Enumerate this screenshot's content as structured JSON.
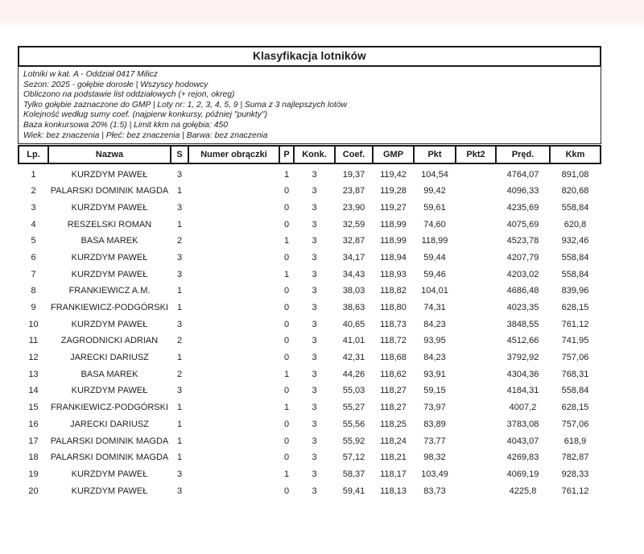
{
  "colors": {
    "top_band_tint": "#fdf2f0",
    "border_color": "#1b1b1b",
    "background": "#ffffff"
  },
  "title": "Klasyfikacja lotników",
  "info_lines": [
    "Lotniki w kat. A - Oddział 0417 Milicz",
    "Sezon: 2025 - gołębie dorosłe  |  Wszyscy hodowcy",
    "Obliczono na podstawie list oddziałowych (+ rejon, okreg)",
    "Tylko gołębie zaznaczone do GMP  |  Loty nr: 1, 2, 3, 4, 5, 9  |  Suma z 3 najlepszych lotów",
    "Kolejność według sumy coef. (najpierw konkursy, później \"punkty\")",
    "Baza konkursowa 20% (1:5) | Limit kkm na gołębia: 450",
    "Wiek: bez znaczenia  |  Płeć: bez znaczenia  |  Barwa: bez znaczenia"
  ],
  "table": {
    "columns": [
      "Lp.",
      "Nazwa",
      "S",
      "Numer obrączki",
      "P",
      "Konk.",
      "Coef.",
      "GMP",
      "Pkt",
      "Pkt2",
      "Pręd.",
      "Kkm"
    ],
    "rows": [
      [
        "1",
        "KURZDYM PAWEŁ",
        "3",
        "",
        "1",
        "3",
        "19,37",
        "119,42",
        "104,54",
        "",
        "4764,07",
        "891,08"
      ],
      [
        "2",
        "PALARSKI DOMINIK MAGDA",
        "1",
        "",
        "0",
        "3",
        "23,87",
        "119,28",
        "99,42",
        "",
        "4096,33",
        "820,68"
      ],
      [
        "3",
        "KURZDYM PAWEŁ",
        "3",
        "",
        "0",
        "3",
        "23,90",
        "119,27",
        "59,61",
        "",
        "4235,69",
        "558,84"
      ],
      [
        "4",
        "RESZELSKI ROMAN",
        "1",
        "",
        "0",
        "3",
        "32,59",
        "118,99",
        "74,60",
        "",
        "4075,69",
        "620,8"
      ],
      [
        "5",
        "BASA MAREK",
        "2",
        "",
        "1",
        "3",
        "32,87",
        "118,99",
        "118,99",
        "",
        "4523,78",
        "932,46"
      ],
      [
        "6",
        "KURZDYM PAWEŁ",
        "3",
        "",
        "0",
        "3",
        "34,17",
        "118,94",
        "59,44",
        "",
        "4207,79",
        "558,84"
      ],
      [
        "7",
        "KURZDYM PAWEŁ",
        "3",
        "",
        "1",
        "3",
        "34,43",
        "118,93",
        "59,46",
        "",
        "4203,02",
        "558,84"
      ],
      [
        "8",
        "FRANKIEWICZ A.M.",
        "1",
        "",
        "0",
        "3",
        "38,03",
        "118,82",
        "104,01",
        "",
        "4686,48",
        "839,96"
      ],
      [
        "9",
        "FRANKIEWICZ-PODGÓRSKI",
        "1",
        "",
        "0",
        "3",
        "38,63",
        "118,80",
        "74,31",
        "",
        "4023,35",
        "628,15"
      ],
      [
        "10",
        "KURZDYM PAWEŁ",
        "3",
        "",
        "0",
        "3",
        "40,65",
        "118,73",
        "84,23",
        "",
        "3848,55",
        "761,12"
      ],
      [
        "11",
        "ZAGRODNICKI ADRIAN",
        "2",
        "",
        "0",
        "3",
        "41,01",
        "118,72",
        "93,95",
        "",
        "4512,66",
        "741,95"
      ],
      [
        "12",
        "JARECKI DARIUSZ",
        "1",
        "",
        "0",
        "3",
        "42,31",
        "118,68",
        "84,23",
        "",
        "3792,92",
        "757,06"
      ],
      [
        "13",
        "BASA MAREK",
        "2",
        "",
        "1",
        "3",
        "44,26",
        "118,62",
        "93,91",
        "",
        "4304,36",
        "768,31"
      ],
      [
        "14",
        "KURZDYM PAWEŁ",
        "3",
        "",
        "0",
        "3",
        "55,03",
        "118,27",
        "59,15",
        "",
        "4184,31",
        "558,84"
      ],
      [
        "15",
        "FRANKIEWICZ-PODGÓRSKI",
        "1",
        "",
        "1",
        "3",
        "55,27",
        "118,27",
        "73,97",
        "",
        "4007,2",
        "628,15"
      ],
      [
        "16",
        "JARECKI DARIUSZ",
        "1",
        "",
        "0",
        "3",
        "55,56",
        "118,25",
        "83,89",
        "",
        "3783,08",
        "757,06"
      ],
      [
        "17",
        "PALARSKI DOMINIK MAGDA",
        "1",
        "",
        "0",
        "3",
        "55,92",
        "118,24",
        "73,77",
        "",
        "4043,07",
        "618,9"
      ],
      [
        "18",
        "PALARSKI DOMINIK MAGDA",
        "1",
        "",
        "0",
        "3",
        "57,12",
        "118,21",
        "98,32",
        "",
        "4269,83",
        "782,87"
      ],
      [
        "19",
        "KURZDYM PAWEŁ",
        "3",
        "",
        "1",
        "3",
        "58,37",
        "118,17",
        "103,49",
        "",
        "4069,19",
        "928,33"
      ],
      [
        "20",
        "KURZDYM PAWEŁ",
        "3",
        "",
        "0",
        "3",
        "59,41",
        "118,13",
        "83,73",
        "",
        "4225,8",
        "761,12"
      ]
    ]
  }
}
